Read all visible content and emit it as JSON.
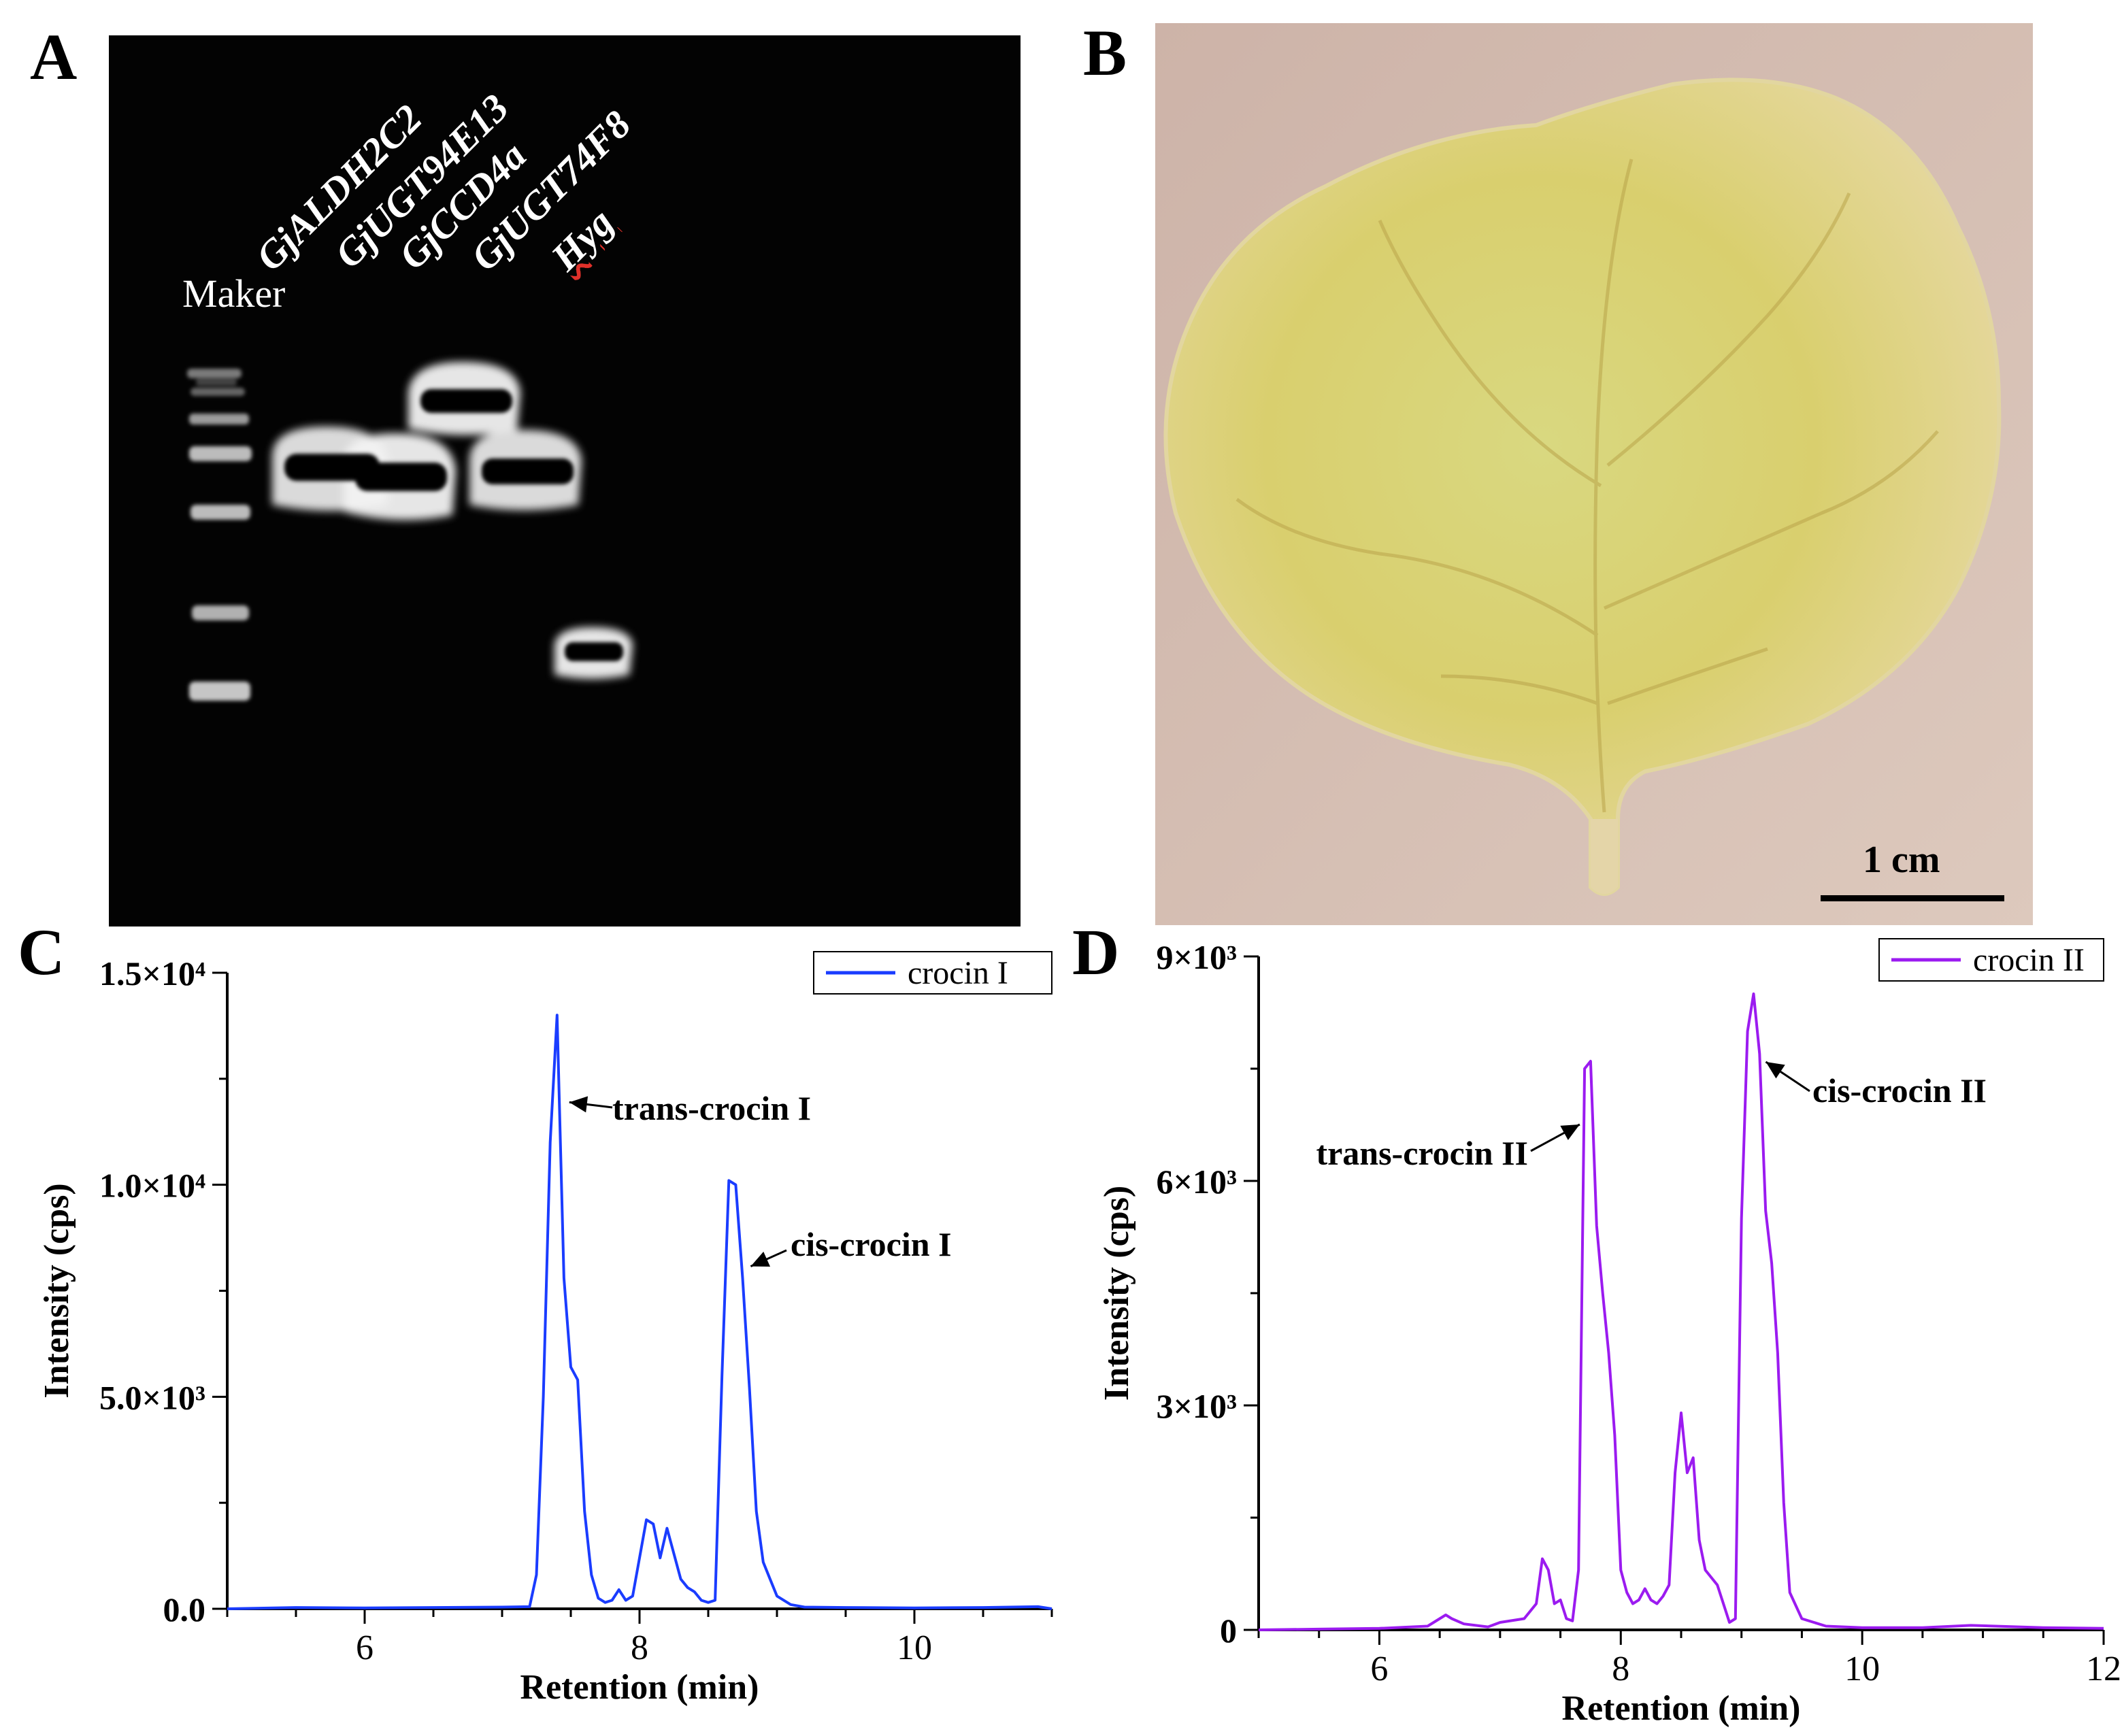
{
  "panels": {
    "a": "A",
    "b": "B",
    "c": "C",
    "d": "D"
  },
  "gel": {
    "lane_labels": [
      "Maker",
      "GjALDH2C2",
      "GjUGT94E13",
      "GjCCD4a",
      "GjUGT74F8",
      "Hyg"
    ]
  },
  "leaf": {
    "scale_label": "1 cm"
  },
  "chart_data": [
    {
      "type": "line",
      "title": "",
      "xlabel": "Retention (min)",
      "ylabel": "Intensity (cps)",
      "xlim": [
        5,
        11
      ],
      "ylim": [
        0,
        15000
      ],
      "x_ticks": [
        6,
        8,
        10
      ],
      "y_ticks": [
        0,
        5000,
        10000,
        15000
      ],
      "y_tick_labels": [
        "0.0",
        "5.0×10³",
        "1.0×10⁴",
        "1.5×10⁴"
      ],
      "grid": false,
      "legend": "top-right",
      "color": "#1a3cff",
      "series": [
        {
          "name": "crocin I",
          "x": [
            5.0,
            5.5,
            6.0,
            6.5,
            7.0,
            7.2,
            7.25,
            7.3,
            7.35,
            7.4,
            7.45,
            7.5,
            7.55,
            7.6,
            7.65,
            7.7,
            7.75,
            7.8,
            7.85,
            7.9,
            7.95,
            8.0,
            8.05,
            8.1,
            8.15,
            8.2,
            8.25,
            8.3,
            8.35,
            8.4,
            8.45,
            8.5,
            8.55,
            8.6,
            8.65,
            8.7,
            8.75,
            8.8,
            8.85,
            8.9,
            8.95,
            9.0,
            9.1,
            9.2,
            9.5,
            10.0,
            10.5,
            10.9,
            11.0
          ],
          "y": [
            0,
            30,
            20,
            30,
            40,
            50,
            800,
            5000,
            11000,
            14000,
            7800,
            5700,
            5400,
            2300,
            800,
            250,
            150,
            200,
            450,
            200,
            300,
            1200,
            2100,
            2000,
            1200,
            1900,
            1300,
            700,
            500,
            400,
            200,
            150,
            200,
            5500,
            10100,
            10000,
            7800,
            5200,
            2300,
            1100,
            700,
            300,
            100,
            40,
            30,
            20,
            30,
            50,
            0
          ],
          "annotations": [
            {
              "text": "trans-crocin I",
              "x": 7.4,
              "y": 14000
            },
            {
              "text": "cis-crocin I",
              "x": 8.7,
              "y": 10000
            }
          ]
        }
      ]
    },
    {
      "type": "line",
      "title": "",
      "xlabel": "Retention (min)",
      "ylabel": "Intensity (cps)",
      "xlim": [
        5,
        12
      ],
      "ylim": [
        0,
        9000
      ],
      "x_ticks": [
        6,
        8,
        10,
        12
      ],
      "y_ticks": [
        0,
        3000,
        6000,
        9000
      ],
      "y_tick_labels": [
        "0",
        "3×10³",
        "6×10³",
        "9×10³"
      ],
      "grid": false,
      "legend": "top-right",
      "color": "#9b1bf0",
      "series": [
        {
          "name": "crocin II",
          "x": [
            5.0,
            5.5,
            6.0,
            6.4,
            6.55,
            6.6,
            6.7,
            6.9,
            7.0,
            7.2,
            7.3,
            7.35,
            7.4,
            7.45,
            7.5,
            7.55,
            7.6,
            7.65,
            7.7,
            7.75,
            7.8,
            7.85,
            7.9,
            7.95,
            8.0,
            8.05,
            8.1,
            8.15,
            8.2,
            8.25,
            8.3,
            8.35,
            8.4,
            8.45,
            8.5,
            8.55,
            8.6,
            8.65,
            8.7,
            8.8,
            8.9,
            8.95,
            9.0,
            9.05,
            9.1,
            9.15,
            9.2,
            9.25,
            9.3,
            9.35,
            9.4,
            9.5,
            9.7,
            10.0,
            10.5,
            10.9,
            11.5,
            12.0
          ],
          "y": [
            0,
            10,
            20,
            50,
            200,
            150,
            80,
            40,
            100,
            150,
            350,
            950,
            800,
            350,
            400,
            150,
            120,
            800,
            7500,
            7600,
            5400,
            4500,
            3700,
            2600,
            800,
            500,
            350,
            400,
            550,
            400,
            350,
            450,
            600,
            2100,
            2900,
            2100,
            2300,
            1200,
            800,
            600,
            100,
            150,
            5500,
            8000,
            8500,
            7700,
            5600,
            4900,
            3700,
            1700,
            500,
            150,
            50,
            30,
            30,
            60,
            30,
            20
          ],
          "annotations": [
            {
              "text": "trans-crocin II",
              "x": 7.75,
              "y": 7500
            },
            {
              "text": "cis-crocin II",
              "x": 9.1,
              "y": 8500
            }
          ]
        }
      ]
    }
  ]
}
